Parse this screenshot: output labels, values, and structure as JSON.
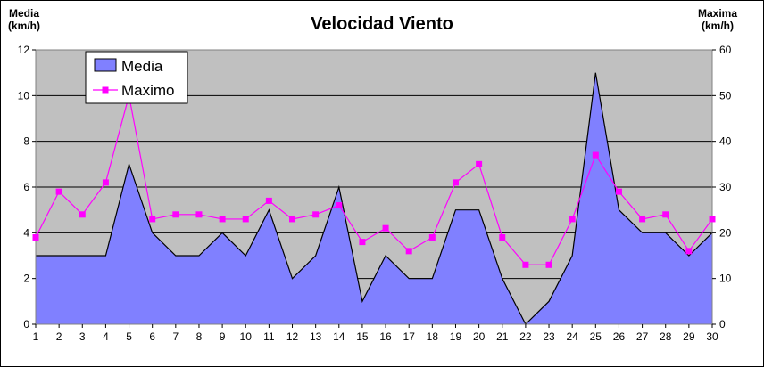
{
  "chart_data": {
    "type": "area",
    "title": "Velocidad Viento",
    "y_left_label_line1": "Media",
    "y_left_label_line2": "(km/h)",
    "y_right_label_line1": "Maxima",
    "y_right_label_line2": "(km/h)",
    "x": [
      1,
      2,
      3,
      4,
      5,
      6,
      7,
      8,
      9,
      10,
      11,
      12,
      13,
      14,
      15,
      16,
      17,
      18,
      19,
      20,
      21,
      22,
      23,
      24,
      25,
      26,
      27,
      28,
      29,
      30
    ],
    "ylim_left": [
      0,
      12
    ],
    "ylim_right": [
      0,
      60
    ],
    "yticks_left": [
      0,
      2,
      4,
      6,
      8,
      10,
      12
    ],
    "yticks_right": [
      0,
      10,
      20,
      30,
      40,
      50,
      60
    ],
    "grid": true,
    "legend_position": "top-left",
    "series": [
      {
        "name": "Media",
        "axis": "left",
        "type": "area",
        "color": "#8080ff",
        "values": [
          3,
          3,
          3,
          3,
          7,
          4,
          3,
          3,
          4,
          3,
          5,
          2,
          3,
          6,
          1,
          3,
          2,
          2,
          5,
          5,
          2,
          0,
          1,
          3,
          11,
          5,
          4,
          4,
          3,
          4
        ]
      },
      {
        "name": "Maximo",
        "axis": "right",
        "type": "line",
        "color": "#ff00ff",
        "values": [
          19,
          29,
          24,
          31,
          50,
          23,
          24,
          24,
          23,
          23,
          27,
          23,
          24,
          26,
          18,
          21,
          16,
          19,
          31,
          35,
          19,
          13,
          13,
          23,
          37,
          29,
          23,
          24,
          16,
          23
        ]
      }
    ]
  }
}
